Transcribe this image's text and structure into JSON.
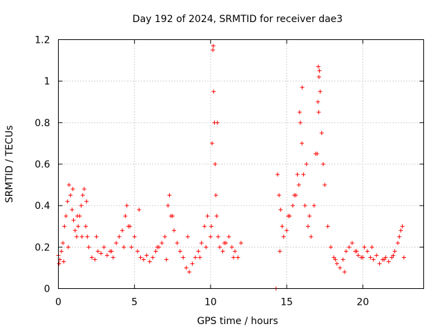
{
  "chart_data": {
    "type": "scatter",
    "title": "Day 192 of 2024, SRMTID for receiver dae3",
    "xlabel": "GPS time / hours",
    "ylabel": "SRMTID / TECUs",
    "xlim": [
      0,
      24
    ],
    "ylim": [
      0,
      1.2
    ],
    "xticks": [
      0,
      5,
      10,
      15,
      20
    ],
    "xtick_labels": [
      "0",
      "5",
      "10",
      "15",
      "20"
    ],
    "yticks": [
      0,
      0.2,
      0.4,
      0.6,
      0.8,
      1.0,
      1.2
    ],
    "ytick_labels": [
      "0",
      "0.2",
      "0.4",
      "0.6",
      "0.8",
      "1",
      "1.2"
    ],
    "grid": true,
    "marker": "+",
    "series": [
      {
        "name": "SRMTID",
        "color": "#ff0000",
        "x": [
          0.0,
          0.1,
          0.2,
          0.3,
          0.4,
          0.5,
          0.6,
          0.7,
          0.8,
          0.9,
          1.0,
          1.1,
          1.2,
          1.3,
          1.4,
          1.5,
          1.6,
          1.7,
          1.8,
          1.9,
          2.0,
          2.2,
          2.4,
          2.6,
          2.8,
          3.0,
          3.2,
          3.4,
          3.6,
          3.8,
          4.0,
          4.2,
          4.4,
          4.5,
          4.6,
          4.8,
          5.0,
          5.2,
          5.4,
          5.6,
          5.8,
          6.0,
          6.2,
          6.4,
          6.6,
          6.8,
          7.0,
          7.2,
          7.3,
          7.4,
          7.6,
          7.8,
          8.0,
          8.2,
          8.4,
          8.6,
          8.8,
          9.0,
          9.2,
          9.4,
          9.6,
          9.8,
          10.0,
          10.1,
          10.15,
          10.2,
          10.25,
          10.3,
          10.35,
          10.4,
          10.5,
          10.6,
          10.8,
          11.0,
          11.2,
          11.4,
          11.6,
          11.8,
          12.0,
          14.4,
          14.5,
          14.6,
          14.7,
          14.8,
          15.0,
          15.2,
          15.4,
          15.6,
          15.8,
          15.9,
          16.0,
          16.1,
          16.2,
          16.4,
          16.6,
          16.8,
          17.0,
          17.1,
          17.2,
          17.3,
          17.5,
          17.7,
          17.9,
          18.1,
          18.3,
          18.5,
          18.7,
          18.9,
          19.1,
          19.3,
          19.5,
          19.7,
          19.9,
          20.1,
          20.3,
          20.5,
          20.7,
          20.9,
          21.1,
          21.3,
          21.5,
          21.7,
          21.9,
          22.1,
          22.3,
          22.5,
          22.7,
          0.05,
          0.35,
          0.65,
          0.95,
          1.25,
          1.55,
          1.85,
          2.5,
          3.5,
          4.3,
          4.7,
          5.3,
          6.5,
          7.1,
          7.5,
          8.5,
          9.3,
          9.7,
          10.05,
          10.45,
          10.9,
          11.5,
          14.55,
          15.1,
          15.5,
          15.7,
          16.3,
          16.5,
          16.9,
          17.05,
          17.15,
          17.4,
          18.2,
          18.8,
          19.6,
          20.0,
          20.6,
          21.4,
          22.0,
          22.4,
          22.6,
          14.3,
          10.18,
          16.02,
          17.08,
          17.12,
          15.85
        ],
        "y": [
          0.16,
          0.14,
          0.18,
          0.22,
          0.3,
          0.35,
          0.42,
          0.5,
          0.45,
          0.38,
          0.33,
          0.28,
          0.25,
          0.3,
          0.35,
          0.4,
          0.45,
          0.48,
          0.3,
          0.25,
          0.2,
          0.15,
          0.14,
          0.18,
          0.17,
          0.2,
          0.16,
          0.18,
          0.15,
          0.22,
          0.25,
          0.28,
          0.35,
          0.4,
          0.3,
          0.2,
          0.25,
          0.18,
          0.15,
          0.14,
          0.16,
          0.13,
          0.15,
          0.18,
          0.2,
          0.22,
          0.25,
          0.4,
          0.45,
          0.35,
          0.28,
          0.22,
          0.18,
          0.15,
          0.1,
          0.08,
          0.12,
          0.15,
          0.18,
          0.22,
          0.3,
          0.35,
          0.25,
          0.7,
          1.15,
          0.95,
          0.8,
          0.6,
          0.45,
          0.35,
          0.25,
          0.2,
          0.18,
          0.22,
          0.25,
          0.2,
          0.18,
          0.15,
          0.22,
          0.55,
          0.45,
          0.38,
          0.3,
          0.25,
          0.28,
          0.35,
          0.4,
          0.45,
          0.5,
          0.8,
          0.7,
          0.55,
          0.4,
          0.3,
          0.25,
          0.4,
          0.65,
          0.85,
          0.95,
          0.75,
          0.5,
          0.3,
          0.2,
          0.15,
          0.12,
          0.1,
          0.14,
          0.18,
          0.2,
          0.22,
          0.18,
          0.16,
          0.15,
          0.2,
          0.18,
          0.15,
          0.14,
          0.16,
          0.12,
          0.14,
          0.15,
          0.13,
          0.15,
          0.18,
          0.22,
          0.28,
          0.15,
          0.12,
          0.13,
          0.2,
          0.48,
          0.35,
          0.25,
          0.42,
          0.25,
          0.18,
          0.2,
          0.3,
          0.38,
          0.2,
          0.14,
          0.35,
          0.25,
          0.15,
          0.2,
          0.3,
          0.8,
          0.22,
          0.15,
          0.18,
          0.35,
          0.45,
          0.55,
          0.6,
          0.35,
          0.65,
          0.9,
          1.05,
          0.6,
          0.14,
          0.08,
          0.18,
          0.15,
          0.2,
          0.14,
          0.16,
          0.25,
          0.3,
          0.0,
          1.17,
          0.97,
          1.07,
          1.02,
          0.85
        ]
      }
    ]
  }
}
